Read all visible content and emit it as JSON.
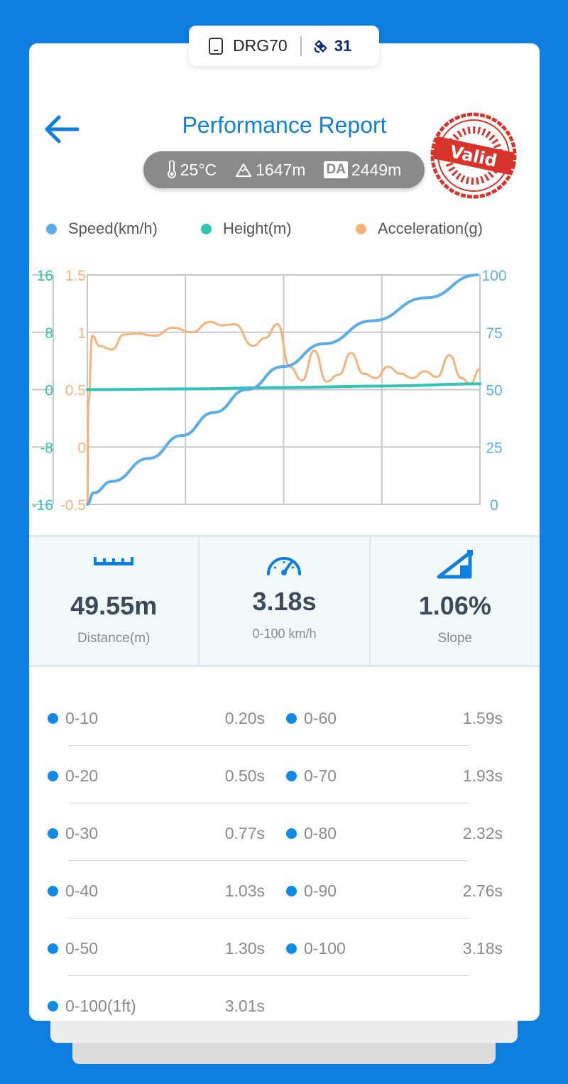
{
  "device": {
    "name": "DRG70",
    "satellite_count": "31"
  },
  "header": {
    "title": "Performance Report",
    "temperature": "25°C",
    "altitude": "1647m",
    "density_altitude_label": "DA",
    "density_altitude": "2449m",
    "stamp_text": "Valid"
  },
  "legend": {
    "speed": "Speed(km/h)",
    "height": "Height(m)",
    "acceleration": "Acceleration(g)"
  },
  "colors": {
    "speed": "#5aade8",
    "height": "#2ec4b6",
    "acceleration": "#f7b27a",
    "accent": "#0e7fe0",
    "stamp": "#d9342b"
  },
  "chart_data": {
    "type": "line",
    "x_range": [
      0,
      3.2
    ],
    "grid": true,
    "axes": {
      "height": {
        "ticks": [
          "16",
          "8",
          "0",
          "-8",
          "-16"
        ],
        "range": [
          -16,
          16
        ]
      },
      "acceleration": {
        "ticks": [
          "1.5",
          "1",
          "0.5",
          "0",
          "-0.5"
        ],
        "range": [
          -0.5,
          1.5
        ]
      },
      "speed": {
        "ticks": [
          "100",
          "75",
          "50",
          "25",
          "0"
        ],
        "range": [
          0,
          100
        ]
      }
    },
    "series": [
      {
        "name": "Speed(km/h)",
        "axis": "speed",
        "x": [
          0,
          0.05,
          0.2,
          0.5,
          0.77,
          1.03,
          1.3,
          1.59,
          1.93,
          2.32,
          2.76,
          3.18
        ],
        "y": [
          0,
          5,
          10,
          20,
          30,
          40,
          50,
          60,
          70,
          80,
          90,
          100
        ]
      },
      {
        "name": "Height(m)",
        "axis": "height",
        "x": [
          0,
          0.8,
          1.6,
          2.4,
          3.2
        ],
        "y": [
          0.0,
          0.1,
          0.3,
          0.5,
          0.8
        ]
      },
      {
        "name": "Acceleration(g)",
        "axis": "acceleration",
        "x": [
          0,
          0.01,
          0.04,
          0.1,
          0.2,
          0.3,
          0.4,
          0.55,
          0.7,
          0.85,
          1.0,
          1.1,
          1.2,
          1.35,
          1.45,
          1.55,
          1.65,
          1.75,
          1.85,
          1.95,
          2.05,
          2.15,
          2.25,
          2.35,
          2.45,
          2.55,
          2.65,
          2.75,
          2.85,
          2.95,
          3.05,
          3.12,
          3.2
        ],
        "y": [
          -0.5,
          0.4,
          0.97,
          0.88,
          0.85,
          0.98,
          0.99,
          0.97,
          1.04,
          1.0,
          1.09,
          1.06,
          1.07,
          0.88,
          0.95,
          1.07,
          0.7,
          0.58,
          0.84,
          0.57,
          0.63,
          0.82,
          0.64,
          0.6,
          0.7,
          0.64,
          0.6,
          0.66,
          0.61,
          0.8,
          0.6,
          0.55,
          0.68
        ]
      }
    ]
  },
  "metrics": [
    {
      "value": "49.55m",
      "label": "Distance(m)",
      "icon": "ruler-icon"
    },
    {
      "value": "3.18s",
      "label": "0-100 km/h",
      "icon": "speedometer-icon"
    },
    {
      "value": "1.06%",
      "label": "Slope",
      "icon": "slope-icon"
    }
  ],
  "splits": [
    {
      "left_label": "0-10",
      "left_time": "0.20s",
      "right_label": "0-60",
      "right_time": "1.59s"
    },
    {
      "left_label": "0-20",
      "left_time": "0.50s",
      "right_label": "0-70",
      "right_time": "1.93s"
    },
    {
      "left_label": "0-30",
      "left_time": "0.77s",
      "right_label": "0-80",
      "right_time": "2.32s"
    },
    {
      "left_label": "0-40",
      "left_time": "1.03s",
      "right_label": "0-90",
      "right_time": "2.76s"
    },
    {
      "left_label": "0-50",
      "left_time": "1.30s",
      "right_label": "0-100",
      "right_time": "3.18s"
    },
    {
      "left_label": "0-100(1ft)",
      "left_time": "3.01s",
      "right_label": "",
      "right_time": ""
    }
  ]
}
